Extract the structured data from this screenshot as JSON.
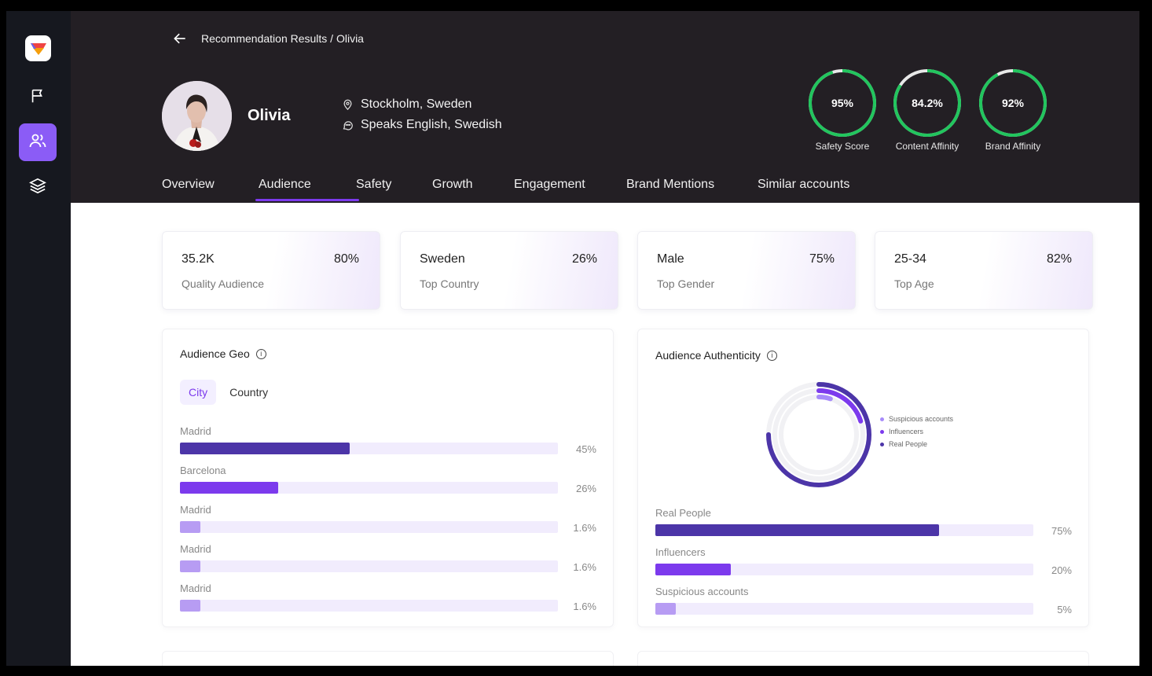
{
  "breadcrumb": "Recommendation Results / Olivia",
  "profile": {
    "name": "Olivia",
    "location": "Stockholm, Sweden",
    "languages": "Speaks English, Swedish"
  },
  "scores": [
    {
      "value": "95%",
      "label": "Safety Score",
      "fraction": 0.95
    },
    {
      "value": "84.2%",
      "label": "Content Affinity",
      "fraction": 0.842
    },
    {
      "value": "92%",
      "label": "Brand Affinity",
      "fraction": 0.92
    }
  ],
  "tabs": [
    "Overview",
    "Audience",
    "Safety",
    "Growth",
    "Engagement",
    "Brand Mentions",
    "Similar accounts"
  ],
  "active_tab": "Audience",
  "stats": [
    {
      "value": "35.2K",
      "percent": "80%",
      "label": "Quality Audience"
    },
    {
      "value": "Sweden",
      "percent": "26%",
      "label": "Top Country"
    },
    {
      "value": "Male",
      "percent": "75%",
      "label": "Top Gender"
    },
    {
      "value": "25-34",
      "percent": "82%",
      "label": "Top Age"
    }
  ],
  "geo": {
    "title": "Audience Geo",
    "toggle": [
      "City",
      "Country"
    ],
    "rows": [
      {
        "label": "Madrid",
        "percent": "45%",
        "fraction": 0.45,
        "color": "#4c35a8"
      },
      {
        "label": "Barcelona",
        "percent": "26%",
        "fraction": 0.26,
        "color": "#7c3aed"
      },
      {
        "label": "Madrid",
        "percent": "1.6%",
        "fraction": 0.016,
        "color": "#b79cf3"
      },
      {
        "label": "Madrid",
        "percent": "1.6%",
        "fraction": 0.016,
        "color": "#b79cf3"
      },
      {
        "label": "Madrid",
        "percent": "1.6%",
        "fraction": 0.016,
        "color": "#b79cf3"
      }
    ]
  },
  "authenticity": {
    "title": "Audience Authenticity",
    "legend": [
      {
        "label": "Suspicious accounts",
        "color": "#a78bfa"
      },
      {
        "label": "Influencers",
        "color": "#7c3aed"
      },
      {
        "label": "Real People",
        "color": "#4c35a8"
      }
    ],
    "rows": [
      {
        "label": "Real People",
        "percent": "75%",
        "fraction": 0.75,
        "color": "#4c35a8"
      },
      {
        "label": "Influencers",
        "percent": "20%",
        "fraction": 0.2,
        "color": "#7c3aed"
      },
      {
        "label": "Suspicious accounts",
        "percent": "5%",
        "fraction": 0.05,
        "color": "#b79cf3"
      }
    ]
  },
  "colors": {
    "accent": "#7c3aed",
    "score_ring": "#22c55e",
    "header_bg": "#231f24",
    "sidebar_bg": "#16181f"
  }
}
